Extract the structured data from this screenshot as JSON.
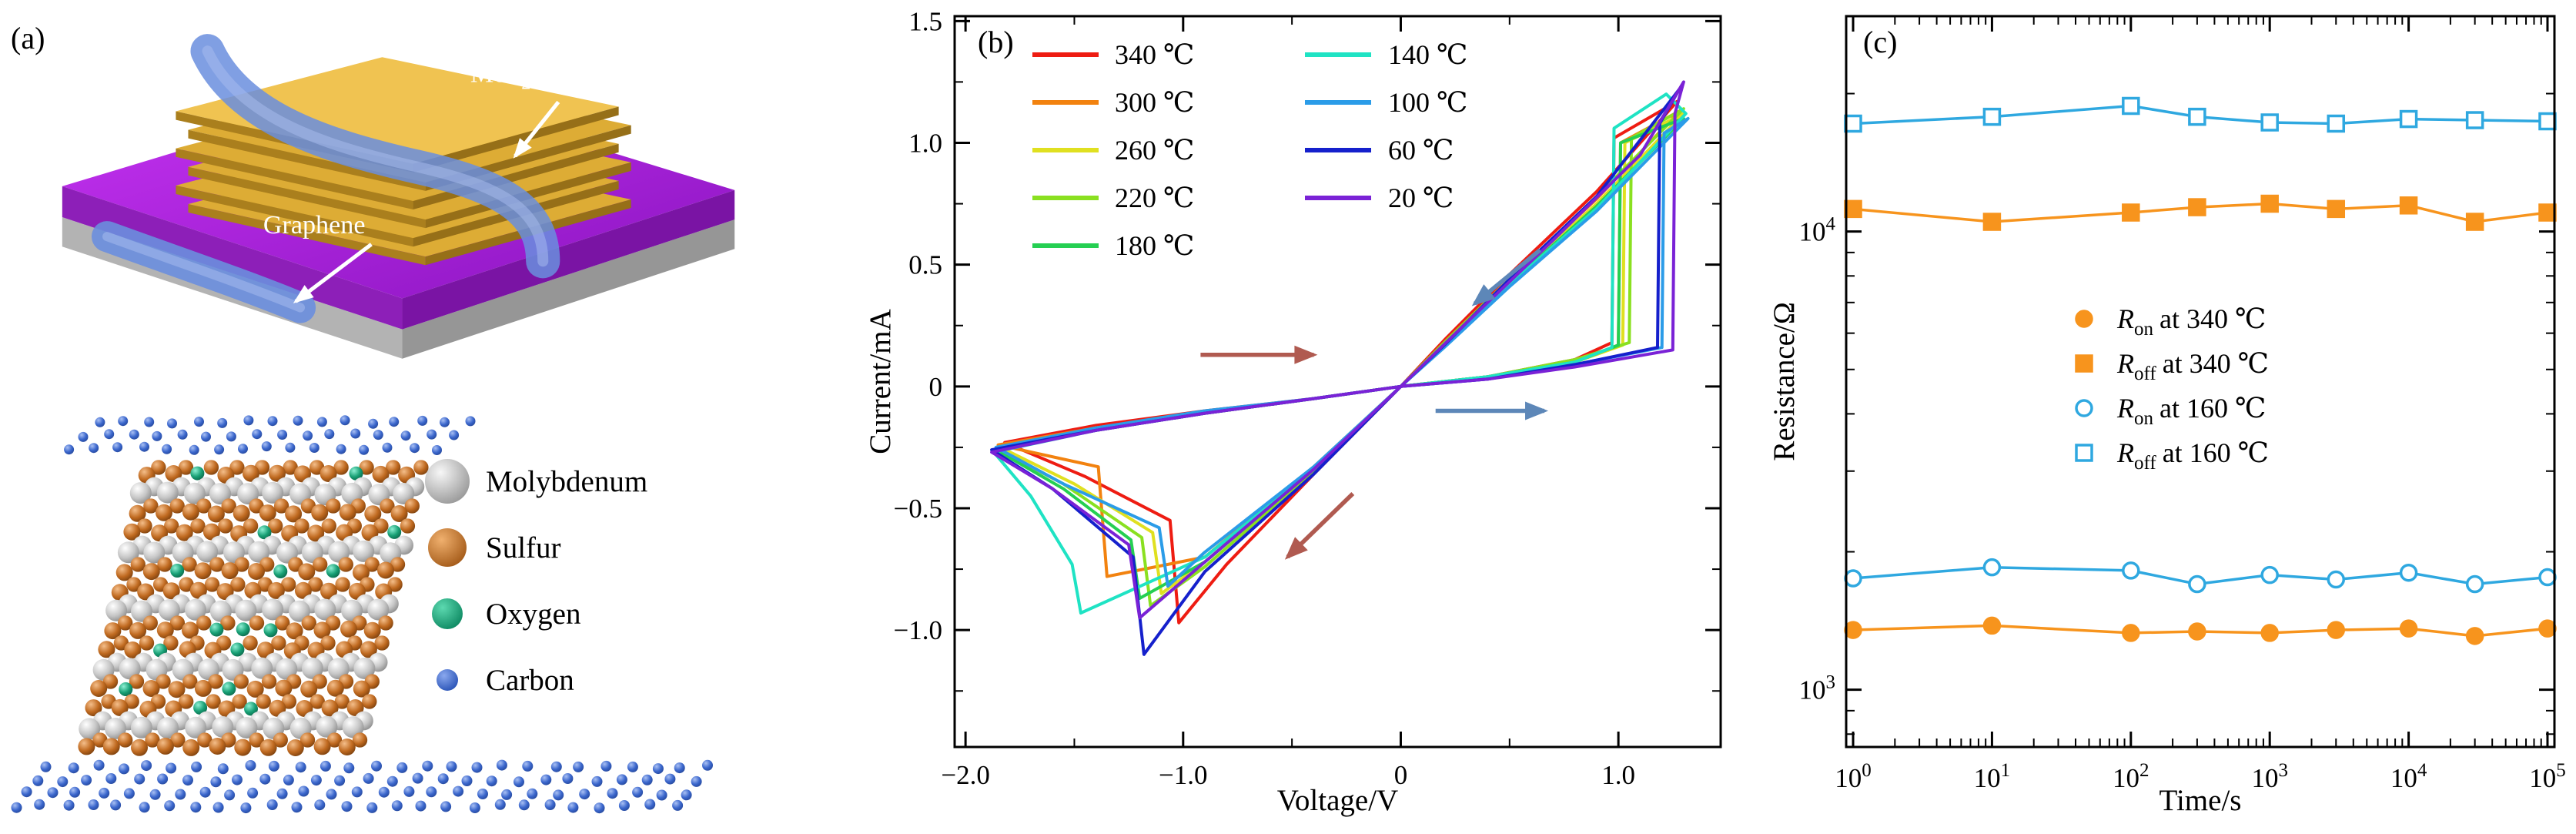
{
  "panels": {
    "a": {
      "label": "(a)",
      "schematic_labels": {
        "mos_base1": "MoS",
        "mos_sub1": "2−x",
        "mos_base2": "O",
        "mos_sub2": "x",
        "graphene": "Graphene"
      },
      "atom_legend": [
        {
          "name": "Molybdenum",
          "color": "#9a9a9a",
          "hi": "#f7f7f7",
          "r": 29
        },
        {
          "name": "Sulfur",
          "color": "#a55c1a",
          "hi": "#f0b06e",
          "r": 25
        },
        {
          "name": "Oxygen",
          "color": "#0f8a63",
          "hi": "#5cd9b0",
          "r": 20
        },
        {
          "name": "Carbon",
          "color": "#2b55b8",
          "hi": "#8aa8ee",
          "r": 14
        }
      ]
    }
  },
  "chart_data": [
    {
      "panel_label": "(b)",
      "type": "line",
      "title": "",
      "xlabel": "Voltage/V",
      "ylabel": "Current/mA",
      "xlim": [
        -2.05,
        1.47
      ],
      "ylim": [
        -1.48,
        1.52
      ],
      "xticks": {
        "values": [
          -2,
          -1,
          0,
          1
        ],
        "labels": [
          "−2.0",
          "−1.0",
          "0",
          "1.0"
        ]
      },
      "xminor": [
        -1.5,
        -0.5,
        0.5
      ],
      "yticks": {
        "values": [
          1.5,
          1.0,
          0.5,
          0,
          -0.5,
          -1.0
        ],
        "labels": [
          "1.5",
          "1.0",
          "0.5",
          "0",
          "−0.5",
          "−1.0"
        ]
      },
      "yminor": [
        -1.25,
        -0.75,
        -0.25,
        0.25,
        0.75,
        1.25
      ],
      "legend": {
        "position": "top-left",
        "columns": [
          [
            "340 ℃",
            "300 ℃",
            "260 ℃",
            "220 ℃",
            "180 ℃"
          ],
          [
            "140 ℃",
            "100 ℃",
            "60 ℃",
            "20 ℃"
          ]
        ]
      },
      "series": [
        {
          "name": "340 ℃",
          "color": "#ee1c12",
          "points": [
            [
              0,
              0
            ],
            [
              0.4,
              0.04
            ],
            [
              0.8,
              0.11
            ],
            [
              0.97,
              0.18
            ],
            [
              0.98,
              1.02
            ],
            [
              1.27,
              1.17
            ],
            [
              0.9,
              0.8
            ],
            [
              0.5,
              0.46
            ],
            [
              0.2,
              0.19
            ],
            [
              0,
              0
            ],
            [
              -0.4,
              -0.36
            ],
            [
              -0.8,
              -0.73
            ],
            [
              -1.02,
              -0.97
            ],
            [
              -1.06,
              -0.55
            ],
            [
              -1.45,
              -0.37
            ],
            [
              -1.82,
              -0.23
            ],
            [
              -1.4,
              -0.16
            ],
            [
              -0.9,
              -0.1
            ],
            [
              -0.4,
              -0.05
            ],
            [
              0,
              0
            ]
          ]
        },
        {
          "name": "300 ℃",
          "color": "#f2820f",
          "points": [
            [
              0,
              0
            ],
            [
              0.4,
              0.04
            ],
            [
              0.8,
              0.1
            ],
            [
              1.0,
              0.17
            ],
            [
              1.01,
              1.0
            ],
            [
              1.28,
              1.13
            ],
            [
              0.9,
              0.77
            ],
            [
              0.5,
              0.44
            ],
            [
              0.2,
              0.18
            ],
            [
              0,
              0
            ],
            [
              -0.4,
              -0.33
            ],
            [
              -0.9,
              -0.7
            ],
            [
              -1.35,
              -0.78
            ],
            [
              -1.39,
              -0.33
            ],
            [
              -1.85,
              -0.24
            ],
            [
              -1.4,
              -0.17
            ],
            [
              -0.9,
              -0.11
            ],
            [
              -0.4,
              -0.05
            ],
            [
              0,
              0
            ]
          ]
        },
        {
          "name": "260 ℃",
          "color": "#e0e020",
          "points": [
            [
              0,
              0
            ],
            [
              0.4,
              0.04
            ],
            [
              0.8,
              0.1
            ],
            [
              1.02,
              0.17
            ],
            [
              1.03,
              1.0
            ],
            [
              1.3,
              1.12
            ],
            [
              0.9,
              0.75
            ],
            [
              0.5,
              0.43
            ],
            [
              0.2,
              0.17
            ],
            [
              0,
              0
            ],
            [
              -0.4,
              -0.34
            ],
            [
              -0.9,
              -0.72
            ],
            [
              -1.1,
              -0.85
            ],
            [
              -1.14,
              -0.6
            ],
            [
              -1.5,
              -0.4
            ],
            [
              -1.84,
              -0.25
            ],
            [
              -1.4,
              -0.17
            ],
            [
              -0.9,
              -0.11
            ],
            [
              -0.4,
              -0.05
            ],
            [
              0,
              0
            ]
          ]
        },
        {
          "name": "220 ℃",
          "color": "#8ae020",
          "points": [
            [
              0,
              0
            ],
            [
              0.4,
              0.04
            ],
            [
              0.8,
              0.11
            ],
            [
              1.05,
              0.18
            ],
            [
              1.06,
              1.02
            ],
            [
              1.3,
              1.14
            ],
            [
              0.9,
              0.78
            ],
            [
              0.5,
              0.44
            ],
            [
              0.2,
              0.18
            ],
            [
              0,
              0
            ],
            [
              -0.4,
              -0.35
            ],
            [
              -0.9,
              -0.74
            ],
            [
              -1.15,
              -0.9
            ],
            [
              -1.19,
              -0.62
            ],
            [
              -1.55,
              -0.4
            ],
            [
              -1.85,
              -0.26
            ],
            [
              -1.4,
              -0.18
            ],
            [
              -0.9,
              -0.11
            ],
            [
              -0.4,
              -0.05
            ],
            [
              0,
              0
            ]
          ]
        },
        {
          "name": "180 ℃",
          "color": "#25cf52",
          "points": [
            [
              0,
              0
            ],
            [
              0.4,
              0.04
            ],
            [
              0.8,
              0.1
            ],
            [
              1.0,
              0.17
            ],
            [
              1.01,
              1.0
            ],
            [
              1.3,
              1.1
            ],
            [
              0.9,
              0.74
            ],
            [
              0.5,
              0.42
            ],
            [
              0.2,
              0.17
            ],
            [
              0,
              0
            ],
            [
              -0.4,
              -0.34
            ],
            [
              -0.9,
              -0.72
            ],
            [
              -1.2,
              -0.87
            ],
            [
              -1.24,
              -0.63
            ],
            [
              -1.55,
              -0.42
            ],
            [
              -1.86,
              -0.26
            ],
            [
              -1.4,
              -0.18
            ],
            [
              -0.9,
              -0.11
            ],
            [
              -0.4,
              -0.05
            ],
            [
              0,
              0
            ]
          ]
        },
        {
          "name": "140 ℃",
          "color": "#1fe3c4",
          "points": [
            [
              0,
              0
            ],
            [
              0.4,
              0.04
            ],
            [
              0.8,
              0.1
            ],
            [
              0.97,
              0.16
            ],
            [
              0.98,
              1.06
            ],
            [
              1.22,
              1.2
            ],
            [
              1.31,
              1.12
            ],
            [
              0.9,
              0.73
            ],
            [
              0.5,
              0.42
            ],
            [
              0.2,
              0.17
            ],
            [
              0,
              0
            ],
            [
              -0.4,
              -0.34
            ],
            [
              -0.9,
              -0.7
            ],
            [
              -1.47,
              -0.93
            ],
            [
              -1.51,
              -0.73
            ],
            [
              -1.7,
              -0.45
            ],
            [
              -1.87,
              -0.27
            ],
            [
              -1.4,
              -0.18
            ],
            [
              -0.9,
              -0.11
            ],
            [
              -0.4,
              -0.05
            ],
            [
              0,
              0
            ]
          ]
        },
        {
          "name": "100 ℃",
          "color": "#2b9ce8",
          "points": [
            [
              0,
              0
            ],
            [
              0.4,
              0.03
            ],
            [
              0.8,
              0.09
            ],
            [
              1.2,
              0.16
            ],
            [
              1.21,
              1.04
            ],
            [
              1.32,
              1.1
            ],
            [
              0.9,
              0.72
            ],
            [
              0.5,
              0.41
            ],
            [
              0.2,
              0.16
            ],
            [
              0,
              0
            ],
            [
              -0.4,
              -0.33
            ],
            [
              -0.9,
              -0.68
            ],
            [
              -1.07,
              -0.82
            ],
            [
              -1.11,
              -0.58
            ],
            [
              -1.55,
              -0.4
            ],
            [
              -1.86,
              -0.25
            ],
            [
              -1.4,
              -0.17
            ],
            [
              -0.9,
              -0.1
            ],
            [
              -0.4,
              -0.05
            ],
            [
              0,
              0
            ]
          ]
        },
        {
          "name": "60 ℃",
          "color": "#1520cc",
          "points": [
            [
              0,
              0
            ],
            [
              0.4,
              0.03
            ],
            [
              0.8,
              0.09
            ],
            [
              1.18,
              0.16
            ],
            [
              1.19,
              1.08
            ],
            [
              1.28,
              1.22
            ],
            [
              0.9,
              0.78
            ],
            [
              0.5,
              0.44
            ],
            [
              0.2,
              0.17
            ],
            [
              0,
              0
            ],
            [
              -0.4,
              -0.36
            ],
            [
              -0.9,
              -0.76
            ],
            [
              -1.18,
              -1.1
            ],
            [
              -1.23,
              -0.7
            ],
            [
              -1.6,
              -0.42
            ],
            [
              -1.88,
              -0.26
            ],
            [
              -1.4,
              -0.18
            ],
            [
              -0.9,
              -0.11
            ],
            [
              -0.4,
              -0.05
            ],
            [
              0,
              0
            ]
          ]
        },
        {
          "name": "20 ℃",
          "color": "#7a22d6",
          "points": [
            [
              0,
              0
            ],
            [
              0.4,
              0.03
            ],
            [
              0.8,
              0.08
            ],
            [
              1.25,
              0.15
            ],
            [
              1.26,
              1.12
            ],
            [
              1.3,
              1.25
            ],
            [
              1.1,
              0.95
            ],
            [
              0.7,
              0.6
            ],
            [
              0.3,
              0.26
            ],
            [
              0,
              0
            ],
            [
              -0.4,
              -0.34
            ],
            [
              -0.9,
              -0.72
            ],
            [
              -1.2,
              -0.95
            ],
            [
              -1.25,
              -0.65
            ],
            [
              -1.6,
              -0.42
            ],
            [
              -1.88,
              -0.27
            ],
            [
              -1.4,
              -0.18
            ],
            [
              -0.9,
              -0.11
            ],
            [
              -0.4,
              -0.05
            ],
            [
              0,
              0
            ]
          ]
        }
      ],
      "arrows": [
        {
          "x1": -0.92,
          "y1": 0.13,
          "x2": -0.4,
          "y2": 0.13,
          "color": "#b05a50"
        },
        {
          "x1": 0.64,
          "y1": 0.56,
          "x2": 0.34,
          "y2": 0.34,
          "color": "#5d87b8"
        },
        {
          "x1": 0.16,
          "y1": -0.1,
          "x2": 0.66,
          "y2": -0.1,
          "color": "#5d87b8"
        },
        {
          "x1": -0.22,
          "y1": -0.44,
          "x2": -0.52,
          "y2": -0.7,
          "color": "#b05a50"
        }
      ]
    },
    {
      "panel_label": "(c)",
      "type": "scatter",
      "title": "",
      "xlabel": "Time/s",
      "ylabel": "Resistance/Ω",
      "xscale": "log",
      "yscale": "log",
      "xlog10_range": [
        -0.05,
        5.05
      ],
      "ylog10_range": [
        2.875,
        4.47
      ],
      "xticks_exp": [
        0,
        1,
        2,
        3,
        4,
        5
      ],
      "yticks_exp": [
        3,
        4
      ],
      "x": [
        1,
        10,
        100,
        300,
        1000,
        3000,
        10000,
        30000,
        100000
      ],
      "series": [
        {
          "label_main": "R",
          "label_sub": "on",
          "label_rest": "at 340 ℃",
          "marker": "circle",
          "style": "filled",
          "color": "#f7941d",
          "values": [
            1350,
            1380,
            1330,
            1340,
            1330,
            1350,
            1360,
            1310,
            1360
          ]
        },
        {
          "label_main": "R",
          "label_sub": "off",
          "label_rest": "at 340 ℃",
          "marker": "square",
          "style": "filled",
          "color": "#f7941d",
          "values": [
            11200,
            10500,
            11000,
            11300,
            11500,
            11200,
            11400,
            10500,
            11000
          ]
        },
        {
          "label_main": "R",
          "label_sub": "on",
          "label_rest": "at 160 ℃",
          "marker": "circle",
          "style": "open",
          "color": "#2fa8e0",
          "values": [
            1750,
            1850,
            1820,
            1700,
            1780,
            1740,
            1800,
            1700,
            1760
          ]
        },
        {
          "label_main": "R",
          "label_sub": "off",
          "label_rest": "at 160 ℃",
          "marker": "square",
          "style": "open",
          "color": "#2fa8e0",
          "values": [
            17200,
            17800,
            18800,
            17800,
            17300,
            17200,
            17600,
            17500,
            17400
          ]
        }
      ]
    }
  ]
}
